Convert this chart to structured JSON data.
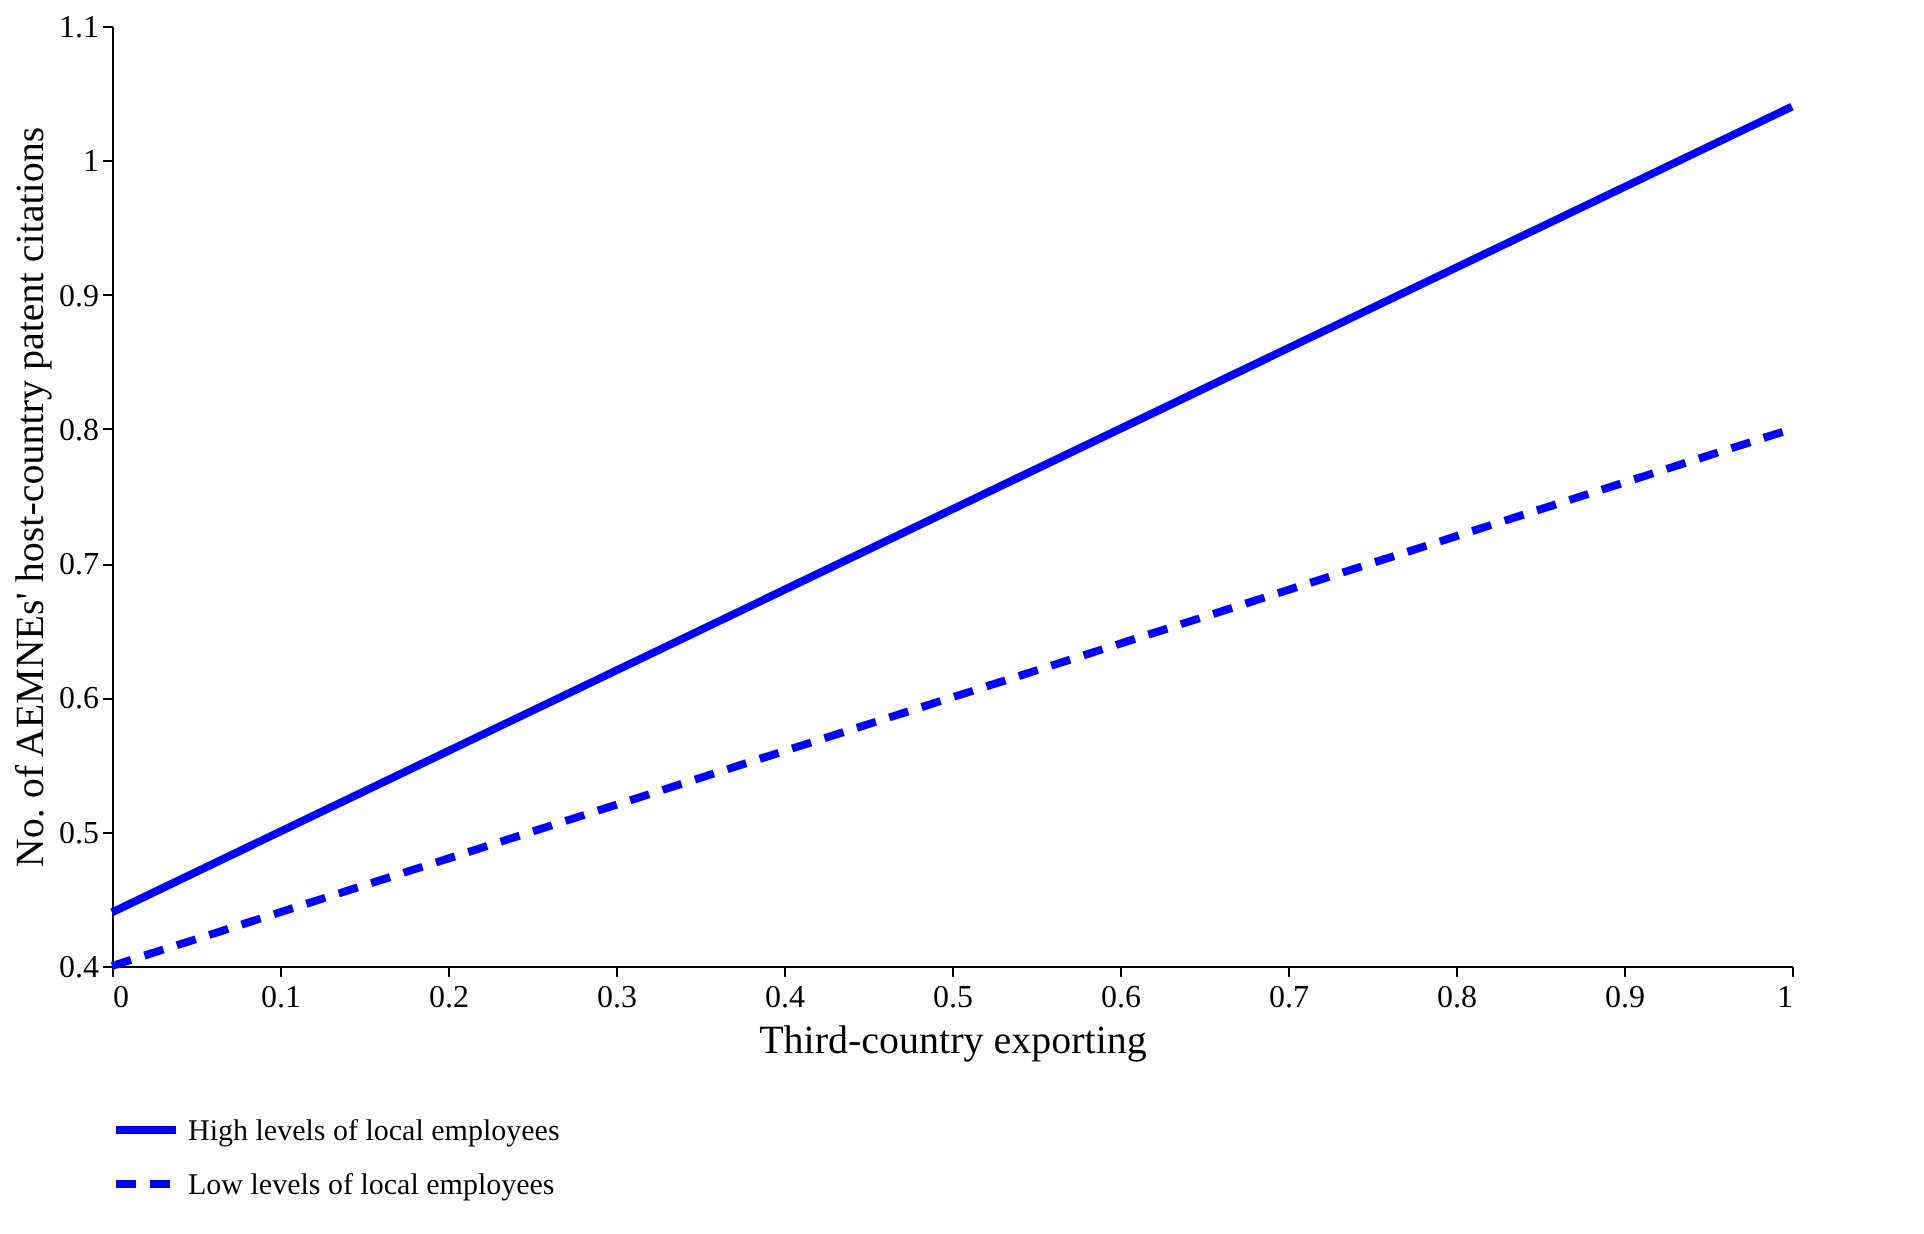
{
  "chart_data": {
    "type": "line",
    "xlabel": "Third-country exporting",
    "ylabel": "No. of AEMNEs' host-country patent citations",
    "x": [
      0,
      1
    ],
    "series": [
      {
        "name": "High levels of local employees",
        "color": "#0000ff",
        "line_style": "solid",
        "values": [
          0.44,
          1.04
        ]
      },
      {
        "name": "Low levels of local employees",
        "color": "#0000ff",
        "line_style": "dashed",
        "values": [
          0.4,
          0.8
        ]
      }
    ],
    "xlim": [
      0,
      1
    ],
    "xticks": [
      0,
      0.1,
      0.2,
      0.3,
      0.4,
      0.5,
      0.6,
      0.7,
      0.8,
      0.9,
      1
    ],
    "ylim": [
      0.4,
      1.1
    ],
    "yticks": [
      0.4,
      0.5,
      0.6,
      0.7,
      0.8,
      0.9,
      1,
      1.1
    ],
    "grid": false,
    "legend": "bottom",
    "marker": "none"
  }
}
